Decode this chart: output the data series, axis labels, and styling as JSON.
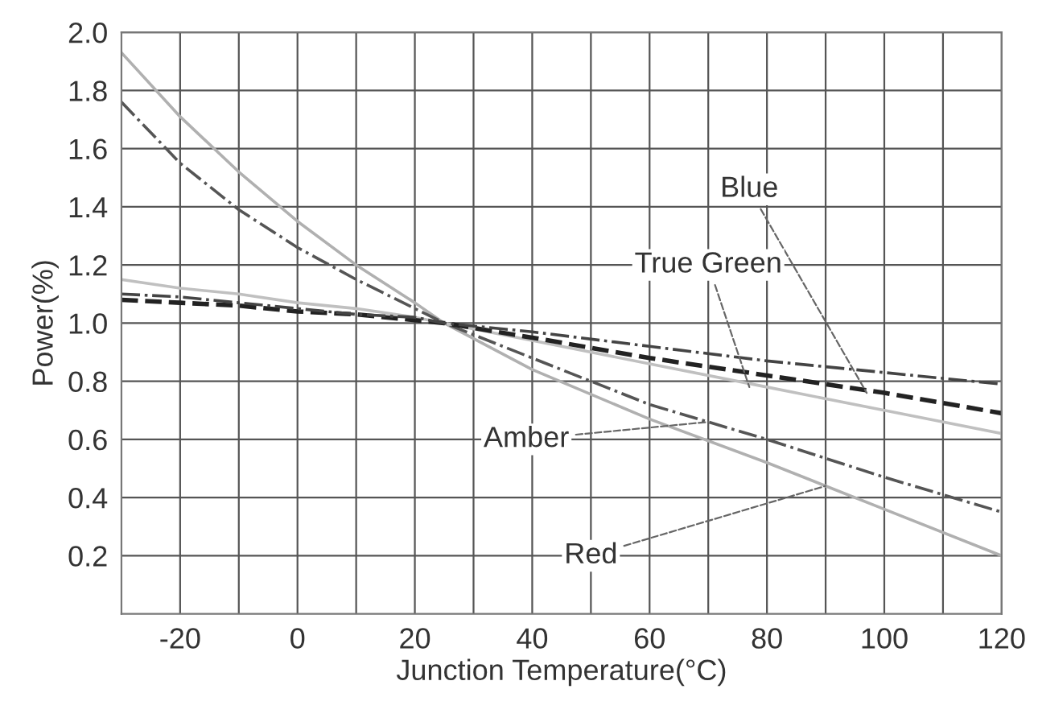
{
  "chart_data": {
    "type": "line",
    "xlabel": "Junction Temperature(°C)",
    "ylabel": "Power(%)",
    "x": [
      -30,
      -20,
      -10,
      0,
      10,
      20,
      25,
      40,
      60,
      80,
      100,
      120
    ],
    "series": [
      {
        "color": "#b0b0b0",
        "line_style": "solid",
        "values": [
          1.93,
          1.71,
          1.52,
          1.35,
          1.2,
          1.07,
          1.0,
          0.84,
          0.67,
          0.52,
          0.36,
          0.2
        ]
      },
      {
        "color": "#555555",
        "line_style": "dashdot",
        "values": [
          1.76,
          1.55,
          1.39,
          1.26,
          1.15,
          1.05,
          1.0,
          0.88,
          0.72,
          0.6,
          0.47,
          0.35
        ]
      },
      {
        "color": "#c0c0c0",
        "line_style": "solid",
        "values": [
          1.15,
          1.12,
          1.1,
          1.07,
          1.05,
          1.02,
          1.0,
          0.94,
          0.86,
          0.78,
          0.7,
          0.62
        ]
      },
      {
        "color": "#222222",
        "line_style": "dashed",
        "values": [
          1.08,
          1.07,
          1.06,
          1.04,
          1.03,
          1.01,
          1.0,
          0.95,
          0.88,
          0.82,
          0.76,
          0.69
        ]
      },
      {
        "color": "#444444",
        "line_style": "dashdot",
        "values": [
          1.1,
          1.09,
          1.07,
          1.05,
          1.03,
          1.02,
          1.0,
          0.97,
          0.92,
          0.87,
          0.83,
          0.79
        ]
      }
    ],
    "annotations": [
      {
        "text": "Blue",
        "x": 97,
        "y": 0.76
      },
      {
        "text": "True Green",
        "x": 77,
        "y": 0.78
      },
      {
        "text": "Amber",
        "x": 70,
        "y": 0.66
      },
      {
        "text": "Red",
        "x": 90,
        "y": 0.44
      }
    ],
    "xlim": [
      -30,
      120
    ],
    "ylim": [
      0,
      2.0
    ],
    "xticks": [
      -20,
      {
        "value": -10,
        "label": null
      },
      0,
      {
        "value": 10,
        "label": null
      },
      20,
      {
        "value": 30,
        "label": null
      },
      40,
      {
        "value": 50,
        "label": null
      },
      60,
      {
        "value": 70,
        "label": null
      },
      80,
      {
        "value": 90,
        "label": null
      },
      100,
      {
        "value": 110,
        "label": null
      },
      120
    ],
    "yticks": [
      0.2,
      0.4,
      0.6,
      0.8,
      {
        "value": 1,
        "label": "1.0"
      },
      1.2,
      1.4,
      1.6,
      1.8,
      {
        "value": 2,
        "label": "2.0"
      }
    ],
    "grid": true,
    "legend": false
  }
}
